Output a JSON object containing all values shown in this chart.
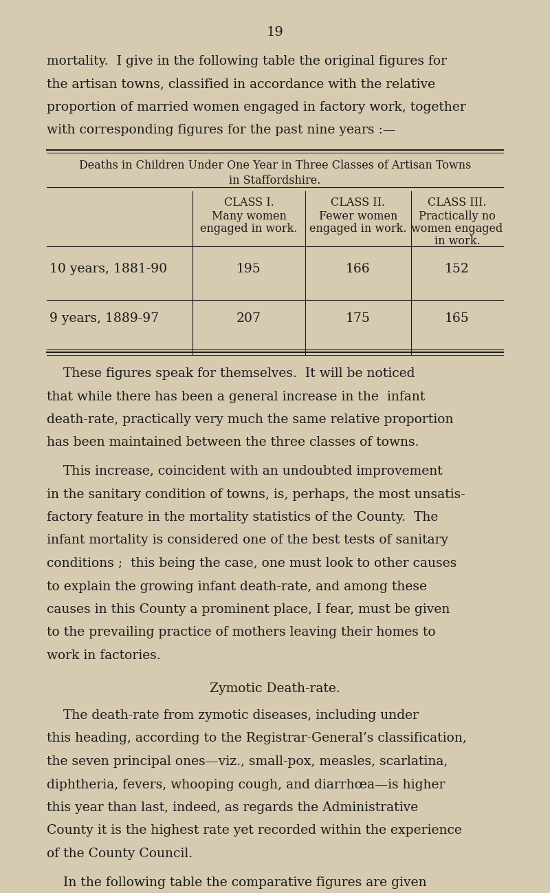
{
  "bg_color": "#d6cab0",
  "text_color": "#1c1c1c",
  "page_number": "19",
  "page_number_fontsize": 14,
  "intro_paragraph": "mortality.  I give in the following table the original figures for the artisan towns, classified in accordance with the relative proportion of married women engaged in factory work, together with corresponding figures for the past nine years :—",
  "table_title_line1": "Deaths in Children Under One Year in Three Classes of Artisan Towns",
  "table_title_line2": "in Staffordshire.",
  "row_labels": [
    "10 years, 1881-90",
    "9 years, 1889-97"
  ],
  "data_values": [
    [
      195,
      166,
      152
    ],
    [
      207,
      175,
      165
    ]
  ],
  "para1_indent": "    These figures speak for themselves.  It will be noticed that while there has been a general increase in the  infant death-rate, practically very much the same relative proportion has been maintained between the three classes of towns.",
  "para2_indent": "    This increase, coincident with an undoubted improvement in the sanitary condition of towns, is, perhaps, the most unsatis-factory feature in the mortality statistics of the County.  The infant mortality is considered one of the best tests of sanitary conditions ;  this being the case, one must look to other causes to explain the growing infant death-rate, and among these causes in this County a prominent place, I fear, must be given to the prevailing practice of mothers leaving their homes to work in factories.",
  "section_heading": "Zymotic Death-rate.",
  "para3_indent": "    The death-rate from zymotic diseases, including under this heading, according to the Registrar-General’s classification, the seven principal ones—viz., small-pox, measles, scarlatina, diphtheria, fevers, whooping cough, and diarrhœa—is higher this year than last, indeed, as regards the Administrative County it is the highest rate yet recorded within the experience of the County Council.",
  "para4_indent": "    In the following table the comparative figures are given for the past nine years, together with similar figures for England and Wales, and for the larger towns in England :—",
  "body_fontsize": 13.5,
  "table_fontsize": 11.5,
  "heading_fontsize": 13.5,
  "line_leading": 0.335
}
